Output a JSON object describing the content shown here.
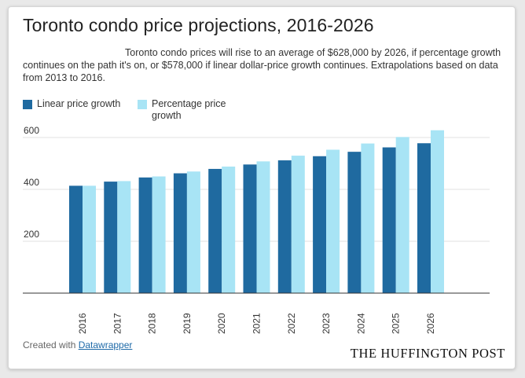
{
  "header": {
    "title": "Toronto condo price projections, 2016-2026",
    "description": "Toronto condo prices will rise to an average of $628,000 by 2026, if percentage growth continues on the path it's on, or $578,000 if linear dollar-price growth continues. Extrapolations based on data from 2013 to 2016."
  },
  "footer": {
    "credit_prefix": "Created with ",
    "credit_link": "Datawrapper",
    "brand": "THE HUFFINGTON POST"
  },
  "colors": {
    "linear": "#1f6aa0",
    "percentage": "#a8e4f5"
  },
  "chart_data": {
    "type": "bar",
    "title": "Toronto condo price projections, 2016-2026",
    "xlabel": "",
    "ylabel": "",
    "ylim": [
      0,
      650
    ],
    "yticks": [
      200,
      400,
      600
    ],
    "grid": true,
    "legend": "top-left",
    "categories": [
      "2016",
      "2017",
      "2018",
      "2019",
      "2020",
      "2021",
      "2022",
      "2023",
      "2024",
      "2025",
      "2026"
    ],
    "series": [
      {
        "name": "Linear price growth",
        "values": [
          414,
          430,
          446,
          462,
          479,
          496,
          512,
          528,
          545,
          562,
          578
        ]
      },
      {
        "name": "Percentage price growth",
        "values": [
          414,
          432,
          450,
          469,
          488,
          508,
          530,
          553,
          577,
          602,
          628
        ]
      }
    ]
  }
}
